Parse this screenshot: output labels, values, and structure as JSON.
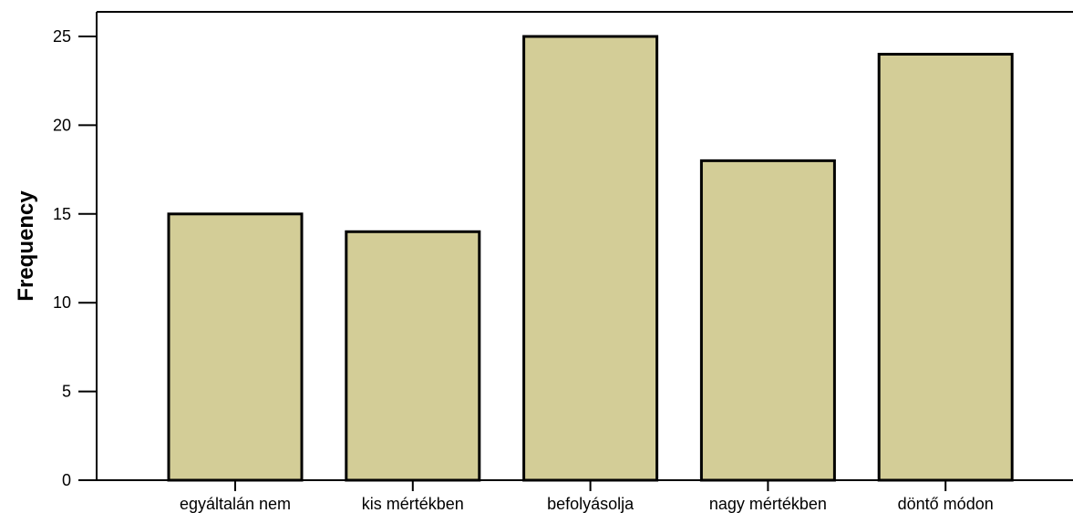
{
  "chart_data": {
    "type": "bar",
    "categories": [
      "egyáltalán nem",
      "kis mértékben",
      "befolyásolja",
      "nagy mértékben",
      "döntő módon"
    ],
    "values": [
      15,
      14,
      25,
      18,
      24
    ],
    "title": "",
    "xlabel": "",
    "ylabel": "Frequency",
    "ylim": [
      0,
      25
    ],
    "yticks": [
      0,
      5,
      10,
      15,
      20,
      25
    ],
    "grid": false,
    "legend": "none",
    "bar_color": "#d3cd97",
    "bar_stroke": "#000000"
  }
}
